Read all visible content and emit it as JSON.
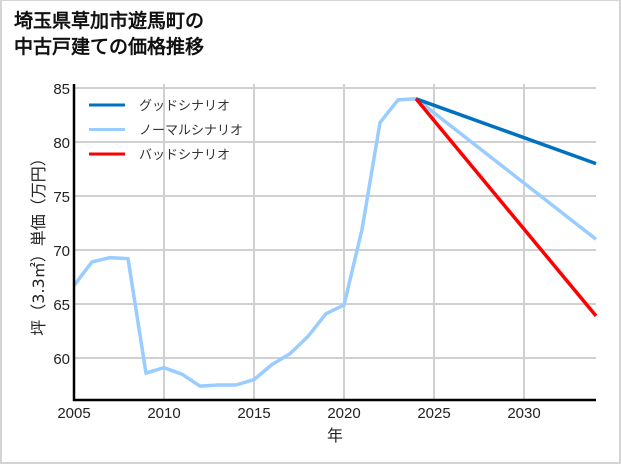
{
  "title": {
    "line1": "埼玉県草加市遊馬町の",
    "line2": "中古戸建ての価格推移"
  },
  "chart_data": {
    "type": "line",
    "title": "埼玉県草加市遊馬町の中古戸建ての価格推移",
    "xlabel": "年",
    "ylabel": "坪（3.3㎡）単価（万円）",
    "xlim": [
      2005,
      2034
    ],
    "ylim": [
      55.8,
      85.4
    ],
    "xticks": [
      2005,
      2010,
      2015,
      2020,
      2025,
      2030
    ],
    "yticks": [
      60,
      65,
      70,
      75,
      80,
      85
    ],
    "grid": true,
    "legend_position": "upper left",
    "series": [
      {
        "name": "グッドシナリオ",
        "color": "#0070c0",
        "x": [
          2024,
          2034
        ],
        "values": [
          84.0,
          78.0
        ]
      },
      {
        "name": "ノーマルシナリオ",
        "color": "#99ccff",
        "x": [
          2005,
          2006,
          2007,
          2008,
          2009,
          2010,
          2011,
          2012,
          2013,
          2014,
          2015,
          2016,
          2017,
          2018,
          2019,
          2020,
          2021,
          2022,
          2023,
          2024,
          2034
        ],
        "values": [
          66.7,
          68.9,
          69.3,
          69.2,
          58.6,
          59.1,
          58.5,
          57.4,
          57.5,
          57.5,
          58.0,
          59.4,
          60.4,
          62.0,
          64.1,
          64.9,
          71.9,
          81.8,
          83.9,
          84.0,
          71.0
        ]
      },
      {
        "name": "バッドシナリオ",
        "color": "#ff0000",
        "x": [
          2024,
          2034
        ],
        "values": [
          84.0,
          63.9
        ]
      }
    ]
  }
}
